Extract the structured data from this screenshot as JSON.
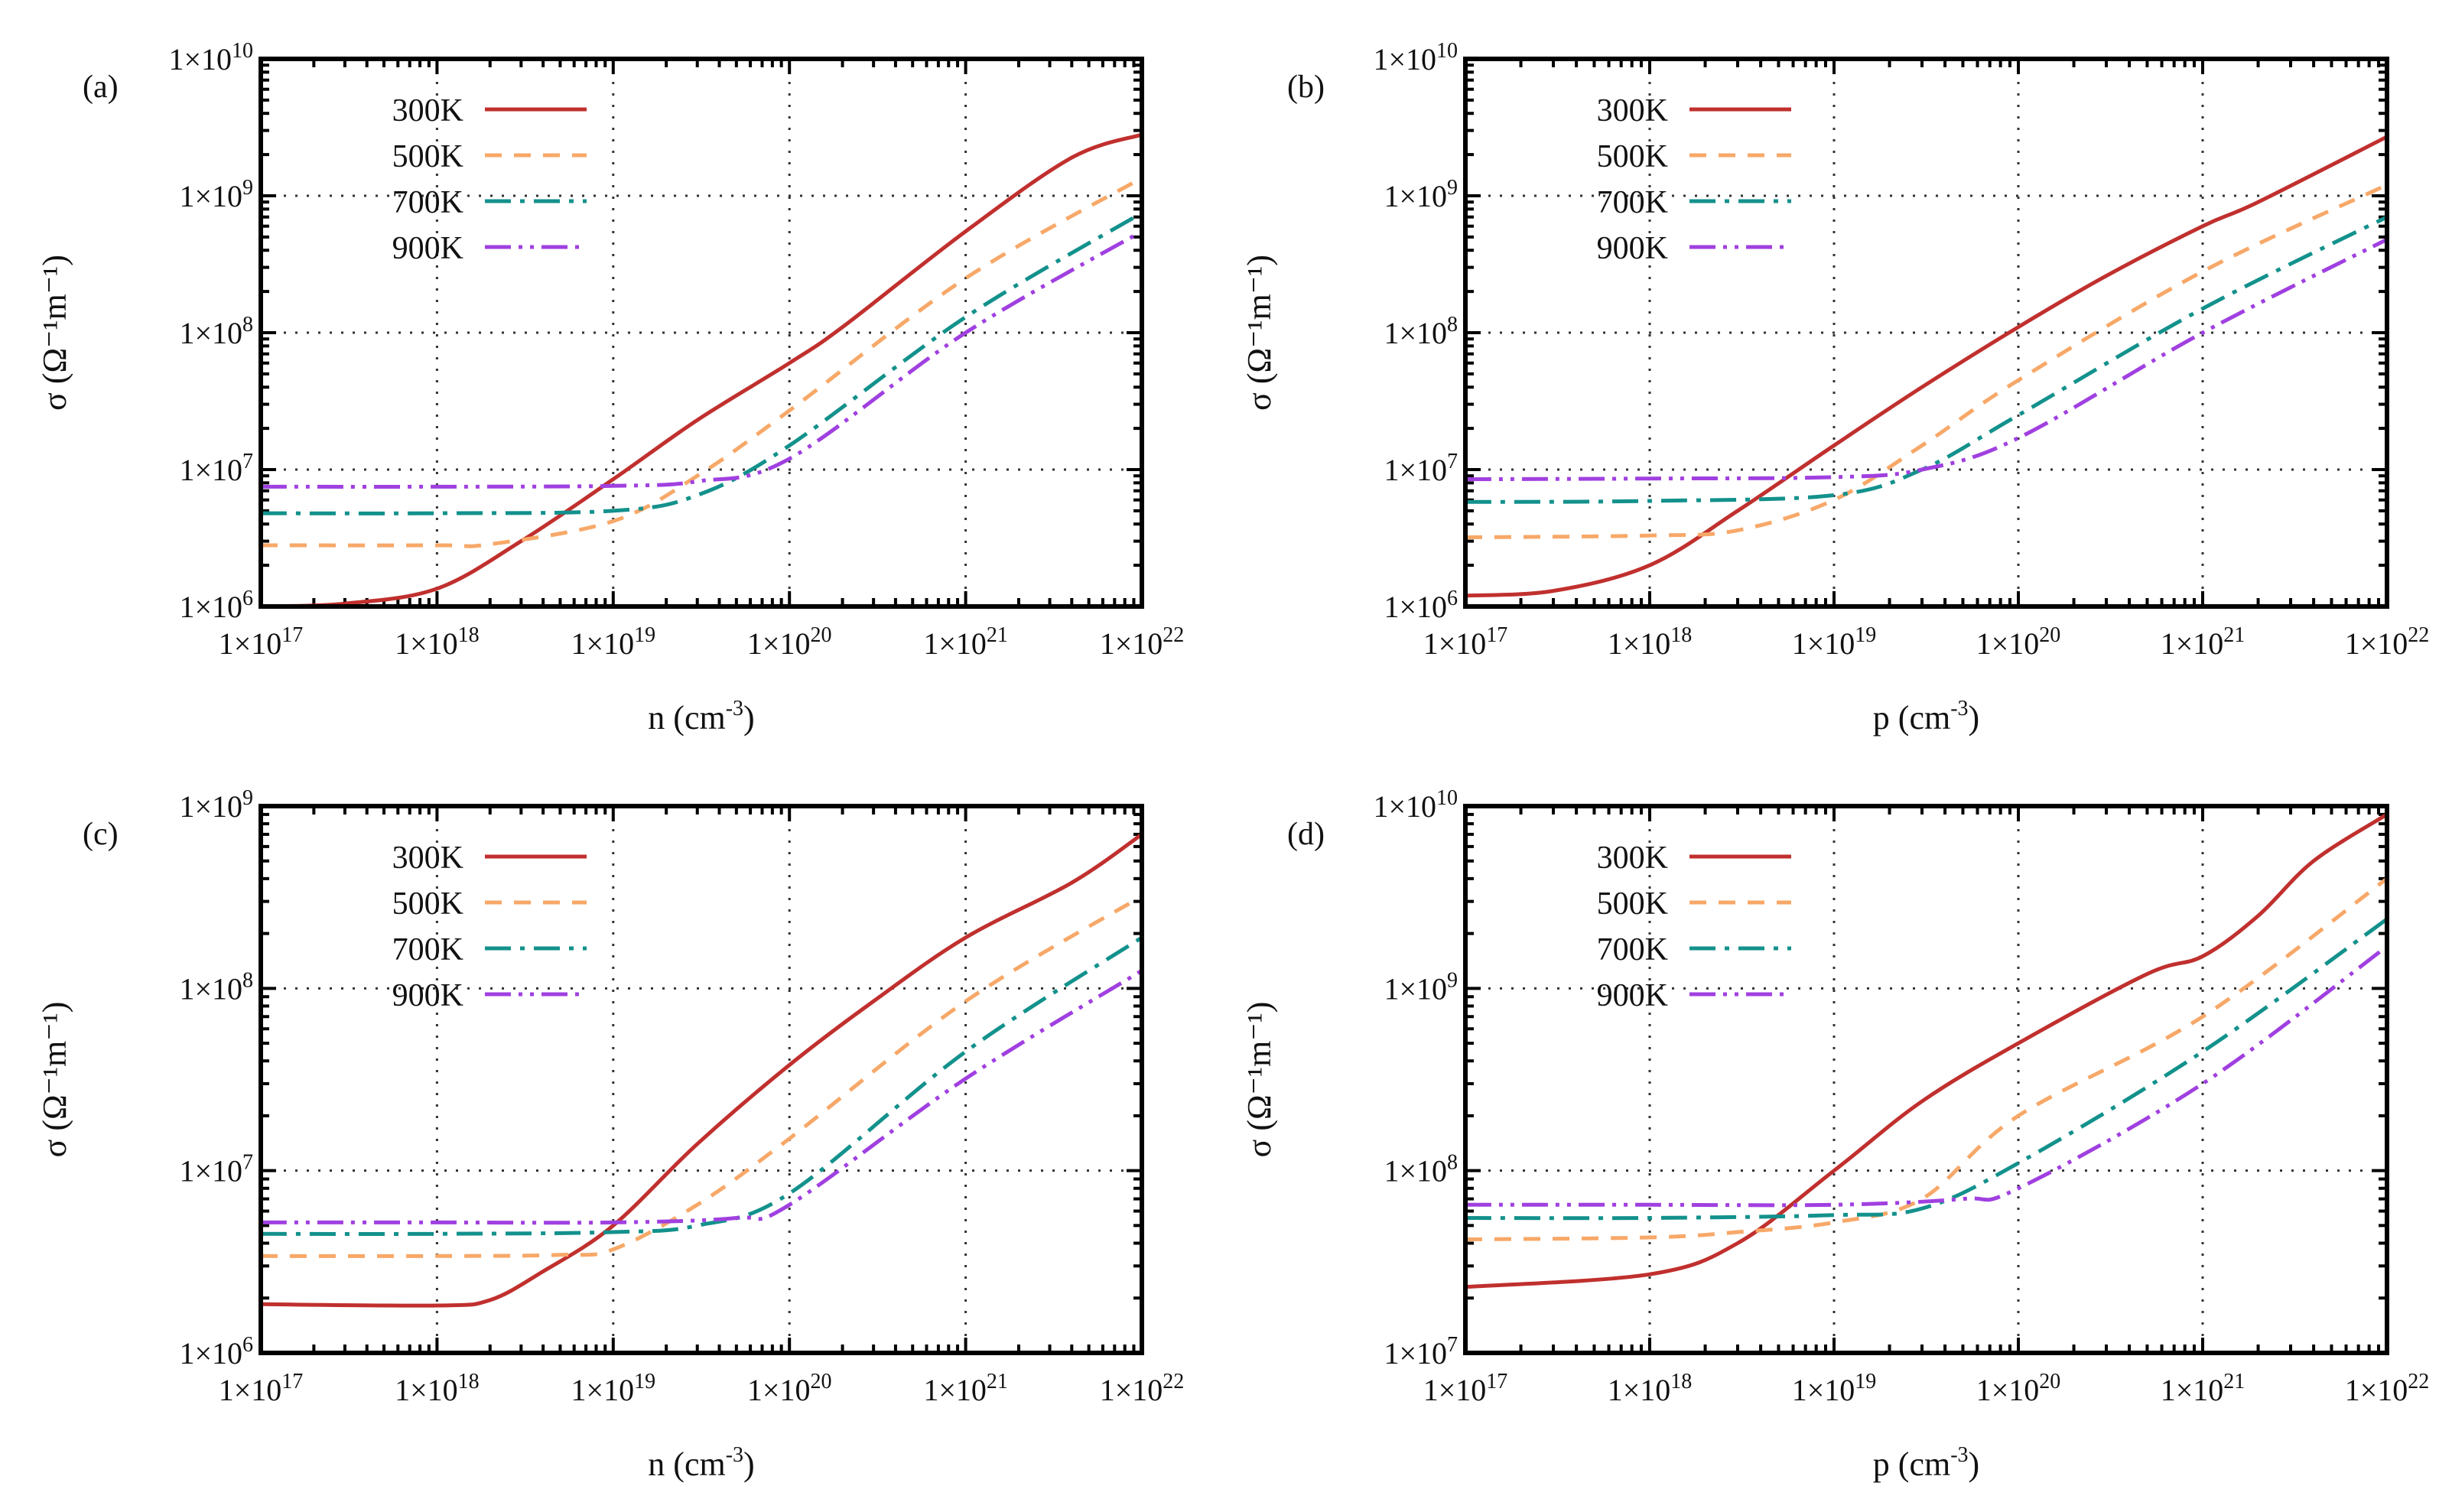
{
  "colors": {
    "300K": "#c0302e",
    "500K": "#f7a868",
    "700K": "#13918c",
    "900K": "#a040e0"
  },
  "chart_data": [
    {
      "type": "line",
      "panel_label": "(a)",
      "xlabel": "n (cm",
      "xlabel_exp": "-3",
      "ylabel": "σ (Ω⁻¹m⁻¹)",
      "xscale": "log",
      "yscale": "log",
      "xlim": [
        1e+17,
        1e+22
      ],
      "ylim": [
        1000000.0,
        10000000000.0
      ],
      "x_ticks": [
        17,
        18,
        19,
        20,
        21,
        22
      ],
      "y_ticks": [
        6,
        7,
        8,
        9,
        10
      ],
      "grid": true,
      "legend_position": "top-left",
      "series": [
        {
          "name": "300K",
          "x": [
            1e+17,
            3e+17,
            1e+18,
            3e+18,
            1e+19,
            3e+19,
            1e+20,
            2e+20,
            1e+21,
            4e+21,
            1e+22
          ],
          "y": [
            1000000.0,
            1050000.0,
            1350000.0,
            3000000.0,
            8500000.0,
            23000000.0,
            60000000.0,
            110000000.0,
            550000000.0,
            1900000000.0,
            2800000000.0
          ]
        },
        {
          "name": "500K",
          "x": [
            1e+17,
            1e+18,
            2e+18,
            1e+19,
            3e+19,
            1e+20,
            1e+21,
            1e+22
          ],
          "y": [
            2800000.0,
            2800000.0,
            2850000.0,
            4200000.0,
            9000000.0,
            27000000.0,
            250000000.0,
            1350000000.0
          ]
        },
        {
          "name": "700K",
          "x": [
            1e+17,
            1e+18,
            1e+19,
            3e+19,
            1e+20,
            1e+21,
            1e+22
          ],
          "y": [
            4800000.0,
            4800000.0,
            5000000.0,
            6500000.0,
            15000000.0,
            130000000.0,
            750000000.0
          ]
        },
        {
          "name": "900K",
          "x": [
            1e+17,
            1e+18,
            1e+19,
            3e+19,
            1e+20,
            1e+21,
            1e+22
          ],
          "y": [
            7500000.0,
            7500000.0,
            7600000.0,
            8200000.0,
            12000000.0,
            100000000.0,
            550000000.0
          ]
        }
      ]
    },
    {
      "type": "line",
      "panel_label": "(b)",
      "xlabel": "p (cm",
      "xlabel_exp": "-3",
      "ylabel": "σ (Ω⁻¹m⁻¹)",
      "xscale": "log",
      "yscale": "log",
      "xlim": [
        1e+17,
        1e+22
      ],
      "ylim": [
        1000000.0,
        10000000000.0
      ],
      "x_ticks": [
        17,
        18,
        19,
        20,
        21,
        22
      ],
      "y_ticks": [
        6,
        7,
        8,
        9,
        10
      ],
      "grid": true,
      "legend_position": "top-left",
      "series": [
        {
          "name": "300K",
          "x": [
            1e+17,
            3e+17,
            1e+18,
            3e+18,
            1e+19,
            3e+19,
            1e+20,
            3e+20,
            1e+21,
            2e+21,
            1e+22
          ],
          "y": [
            1200000.0,
            1300000.0,
            2000000.0,
            5000000.0,
            15000000.0,
            40000000.0,
            110000000.0,
            260000000.0,
            600000000.0,
            900000000.0,
            2700000000.0
          ]
        },
        {
          "name": "500K",
          "x": [
            1e+17,
            1e+18,
            3e+18,
            1e+19,
            3e+19,
            1e+20,
            1e+21,
            1e+22
          ],
          "y": [
            3200000.0,
            3300000.0,
            3600000.0,
            6000000.0,
            15000000.0,
            45000000.0,
            280000000.0,
            1200000000.0
          ]
        },
        {
          "name": "700K",
          "x": [
            1e+17,
            1e+18,
            1e+19,
            3e+19,
            1e+20,
            1e+21,
            1e+22
          ],
          "y": [
            5800000.0,
            5900000.0,
            6500000.0,
            10000000.0,
            25000000.0,
            150000000.0,
            700000000.0
          ]
        },
        {
          "name": "900K",
          "x": [
            1e+17,
            1e+18,
            1e+19,
            3e+19,
            1e+20,
            1e+21,
            1e+22
          ],
          "y": [
            8500000.0,
            8600000.0,
            8800000.0,
            10000000.0,
            17000000.0,
            100000000.0,
            480000000.0
          ]
        }
      ]
    },
    {
      "type": "line",
      "panel_label": "(c)",
      "xlabel": "n (cm",
      "xlabel_exp": "-3",
      "ylabel": "σ (Ω⁻¹m⁻¹)",
      "xscale": "log",
      "yscale": "log",
      "xlim": [
        1e+17,
        1e+22
      ],
      "ylim": [
        1000000.0,
        1000000000.0
      ],
      "x_ticks": [
        17,
        18,
        19,
        20,
        21,
        22
      ],
      "y_ticks": [
        6,
        7,
        8,
        9
      ],
      "grid": true,
      "legend_position": "top-left",
      "series": [
        {
          "name": "300K",
          "x": [
            1e+17,
            1e+18,
            2e+18,
            4e+18,
            1e+19,
            3e+19,
            1e+20,
            3e+20,
            1e+21,
            4e+21,
            1e+22
          ],
          "y": [
            1850000.0,
            1820000.0,
            1950000.0,
            2800000.0,
            5000000.0,
            14000000.0,
            38000000.0,
            85000000.0,
            190000000.0,
            380000000.0,
            700000000.0
          ]
        },
        {
          "name": "500K",
          "x": [
            1e+17,
            1e+18,
            5e+18,
            1e+19,
            3e+19,
            1e+20,
            1e+21,
            1e+22
          ],
          "y": [
            3400000.0,
            3400000.0,
            3450000.0,
            3700000.0,
            6500000.0,
            15000000.0,
            85000000.0,
            320000000.0
          ]
        },
        {
          "name": "700K",
          "x": [
            1e+17,
            1e+18,
            1e+19,
            3e+19,
            1e+20,
            1e+21,
            1e+22
          ],
          "y": [
            4500000.0,
            4500000.0,
            4600000.0,
            5000000.0,
            7500000.0,
            45000000.0,
            190000000.0
          ]
        },
        {
          "name": "900K",
          "x": [
            1e+17,
            1e+18,
            1e+19,
            5e+19,
            1e+20,
            1e+21,
            1e+22
          ],
          "y": [
            5200000.0,
            5200000.0,
            5200000.0,
            5500000.0,
            6500000.0,
            32000000.0,
            125000000.0
          ]
        }
      ]
    },
    {
      "type": "line",
      "panel_label": "(d)",
      "xlabel": "p (cm",
      "xlabel_exp": "-3",
      "ylabel": "σ (Ω⁻¹m⁻¹)",
      "xscale": "log",
      "yscale": "log",
      "xlim": [
        1e+17,
        1e+22
      ],
      "ylim": [
        10000000.0,
        10000000000.0
      ],
      "x_ticks": [
        17,
        18,
        19,
        20,
        21,
        22
      ],
      "y_ticks": [
        7,
        8,
        9,
        10
      ],
      "grid": true,
      "legend_position": "top-left",
      "series": [
        {
          "name": "300K",
          "x": [
            1e+17,
            1e+18,
            3e+18,
            1e+19,
            3e+19,
            1e+20,
            5e+20,
            1e+21,
            2e+21,
            4e+21,
            1e+22
          ],
          "y": [
            23000000.0,
            27000000.0,
            40000000.0,
            100000000.0,
            240000000.0,
            500000000.0,
            1200000000.0,
            1500000000.0,
            2500000000.0,
            5000000000.0,
            9000000000.0
          ]
        },
        {
          "name": "500K",
          "x": [
            1e+17,
            1e+18,
            3e+18,
            1e+19,
            3e+19,
            1e+20,
            1e+21,
            1e+22
          ],
          "y": [
            42000000.0,
            43000000.0,
            46000000.0,
            52000000.0,
            70000000.0,
            200000000.0,
            700000000.0,
            4000000000.0
          ]
        },
        {
          "name": "700K",
          "x": [
            1e+17,
            1e+18,
            1e+19,
            3e+19,
            1e+20,
            1e+21,
            1e+22
          ],
          "y": [
            55000000.0,
            55000000.0,
            57000000.0,
            62000000.0,
            110000000.0,
            450000000.0,
            2400000000.0
          ]
        },
        {
          "name": "900K",
          "x": [
            1e+17,
            1e+18,
            1e+19,
            5e+19,
            1e+20,
            1e+21,
            1e+22
          ],
          "y": [
            65000000.0,
            65000000.0,
            65000000.0,
            70000000.0,
            80000000.0,
            300000000.0,
            1700000000.0
          ]
        }
      ]
    }
  ]
}
